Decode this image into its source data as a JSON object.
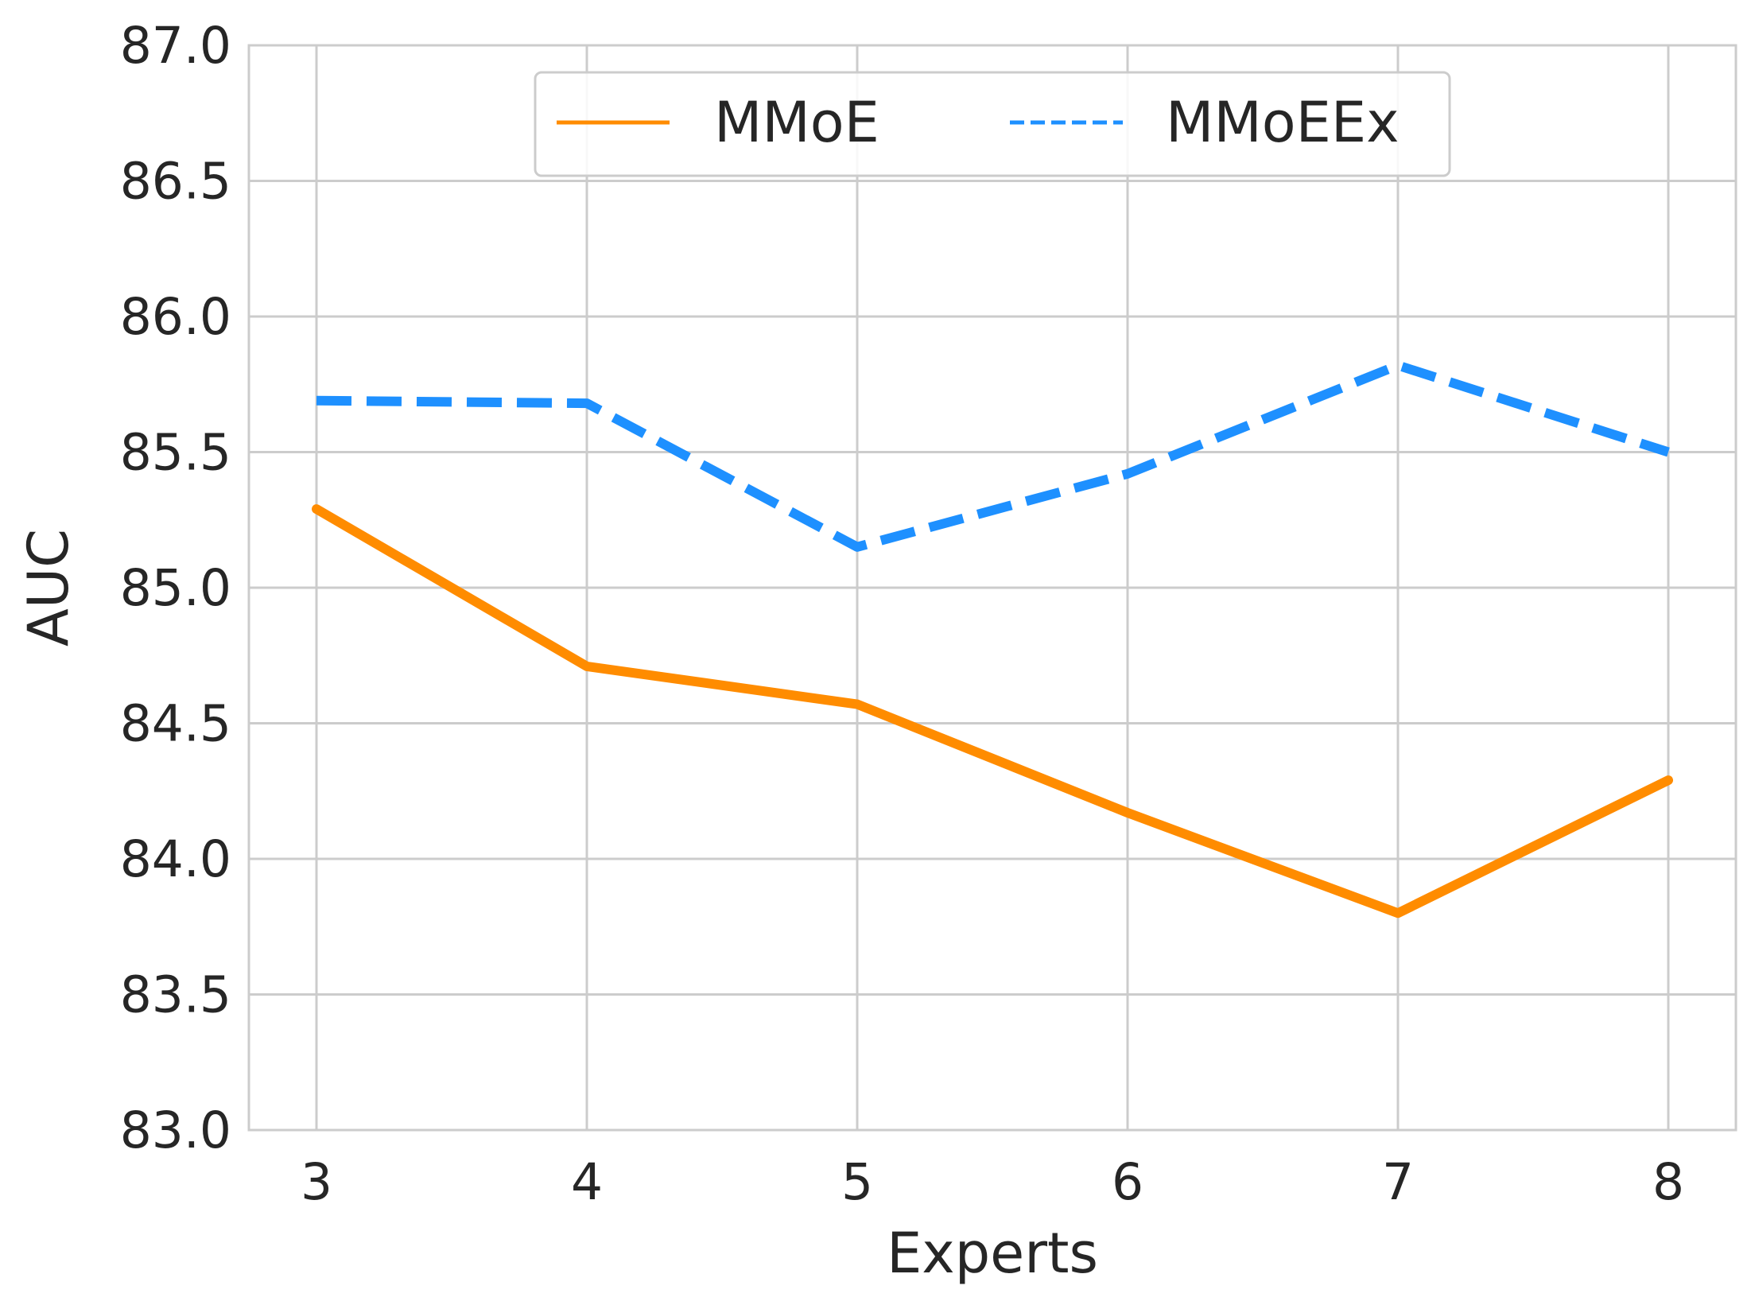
{
  "chart_data": {
    "type": "line",
    "x": [
      3,
      4,
      5,
      6,
      7,
      8
    ],
    "series": [
      {
        "name": "MMoE",
        "values": [
          85.29,
          84.71,
          84.57,
          84.17,
          83.8,
          84.29
        ],
        "color": "#ff8c00",
        "dash": "solid"
      },
      {
        "name": "MMoEEx",
        "values": [
          85.69,
          85.68,
          85.15,
          85.42,
          85.82,
          85.5
        ],
        "color": "#1e90ff",
        "dash": "dashed"
      }
    ],
    "title": "",
    "xlabel": "Experts",
    "ylabel": "AUC",
    "xlim": [
      2.75,
      8.25
    ],
    "ylim": [
      83.0,
      87.0
    ],
    "x_ticks": [
      "3",
      "4",
      "5",
      "6",
      "7",
      "8"
    ],
    "y_ticks": [
      "83.0",
      "83.5",
      "84.0",
      "84.5",
      "85.0",
      "85.5",
      "86.0",
      "86.5",
      "87.0"
    ],
    "grid": true,
    "legend_position": "top-center"
  }
}
